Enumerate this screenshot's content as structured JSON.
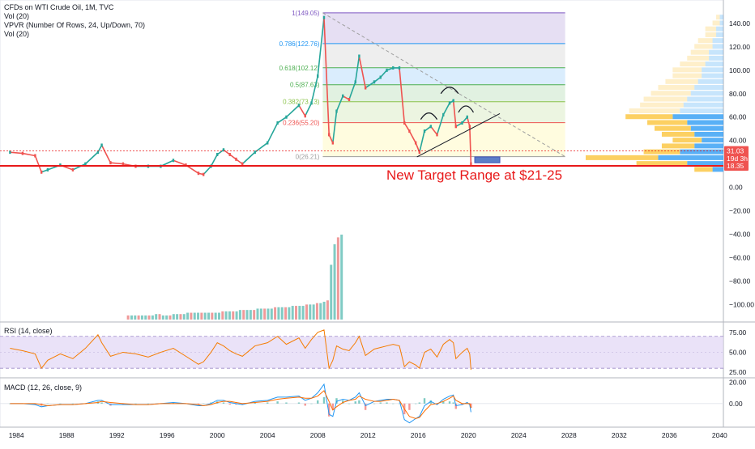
{
  "legend": {
    "symbol": "CFDs on WTI Crude Oil, 1M, TVC",
    "vol1": "Vol (20)",
    "vpvr": "VPVR (Number Of Rows, 24, Up/Down, 70)",
    "vol2": "Vol (20)"
  },
  "annotation": {
    "target_text": "New Target Range at $21-25"
  },
  "colors": {
    "up": "#26a69a",
    "down": "#ef5350",
    "target_line": "#e8191a",
    "rsi": "#f57c00",
    "macd": "#2196f3",
    "signal": "#ff6d00",
    "fib_line": "#9e9e9e"
  },
  "fib_levels": [
    {
      "label": "1(149.05)",
      "price": 149.05,
      "color": "#7e57c2",
      "fill": "#d1c4e9"
    },
    {
      "label": "0.786(122.76)",
      "price": 122.76,
      "color": "#2196f3",
      "fill": "#e0e0e0"
    },
    {
      "label": "0.618(102.12)",
      "price": 102.12,
      "color": "#4caf50",
      "fill": "#bbdefb"
    },
    {
      "label": "0.5(87.63)",
      "price": 87.63,
      "color": "#4caf50",
      "fill": "#c8e6c9"
    },
    {
      "label": "0.382(73.13)",
      "price": 73.13,
      "color": "#8bc34a",
      "fill": "#dcedc8"
    },
    {
      "label": "0.236(55.20)",
      "price": 55.2,
      "color": "#ef5350",
      "fill": "#fff9c4"
    },
    {
      "label": "0(26.21)",
      "price": 26.21,
      "color": "#9e9e9e",
      "fill": "#ffcdd2"
    }
  ],
  "price_badges": [
    {
      "text": "31.03",
      "price": 31.03,
      "color": "#ef5350"
    },
    {
      "text": "19d 3h",
      "price": 24.6,
      "color": "#ef5350"
    },
    {
      "text": "18.35",
      "price": 18.35,
      "color": "#ef5350"
    }
  ],
  "price_axis": {
    "ticks": [
      "140.00",
      "120.00",
      "100.00",
      "80.00",
      "60.00",
      "40.00",
      "20.00",
      "0.00",
      "−20.00",
      "−40.00",
      "−60.00",
      "−80.00",
      "−100.00"
    ],
    "values": [
      140,
      120,
      100,
      80,
      60,
      40,
      20,
      0,
      -20,
      -40,
      -60,
      -80,
      -100
    ]
  },
  "rsi": {
    "label": "RSI (14, close)",
    "ticks": [
      "75.00",
      "50.00",
      "25.00"
    ],
    "values": [
      75,
      50,
      25
    ]
  },
  "macd": {
    "label": "MACD (12, 26, close, 9)",
    "ticks": [
      "20.00",
      "0.00"
    ],
    "values": [
      20,
      0
    ]
  },
  "time_axis": {
    "labels": [
      "1984",
      "1988",
      "1992",
      "1996",
      "2000",
      "2004",
      "2008",
      "2012",
      "2016",
      "2020",
      "2024",
      "2028",
      "2032",
      "2036",
      "2040"
    ],
    "years": [
      1984,
      1988,
      1992,
      1996,
      2000,
      2004,
      2008,
      2012,
      2016,
      2020,
      2024,
      2028,
      2032,
      2036,
      2040
    ]
  },
  "chart_data": {
    "type": "line",
    "series": [
      {
        "name": "CFDs on WTI Crude Oil, 1M, TVC",
        "x": [
          1983.5,
          1984.5,
          1985.5,
          1986.0,
          1986.5,
          1987.5,
          1988.5,
          1989.5,
          1990.5,
          1990.8,
          1991.5,
          1992.5,
          1993.5,
          1994.5,
          1995.5,
          1996.5,
          1997.5,
          1998.5,
          1998.9,
          1999.5,
          2000.0,
          2000.5,
          2001.0,
          2001.5,
          2002.0,
          2003.0,
          2004.0,
          2004.8,
          2005.5,
          2006.5,
          2007.0,
          2007.5,
          2008.0,
          2008.5,
          2008.9,
          2009.2,
          2009.5,
          2010.0,
          2010.5,
          2011.0,
          2011.3,
          2011.8,
          2012.5,
          2013.0,
          2013.5,
          2014.0,
          2014.5,
          2014.9,
          2015.3,
          2015.8,
          2016.1,
          2016.5,
          2017.0,
          2017.5,
          2018.0,
          2018.5,
          2018.8,
          2019.0,
          2019.5,
          2019.9,
          2020.1,
          2020.2
        ],
        "y": [
          30,
          29,
          27,
          13,
          15,
          19,
          15,
          20,
          30,
          36,
          21,
          20,
          18,
          18,
          18,
          23,
          19,
          12,
          11,
          18,
          28,
          32,
          28,
          24,
          20,
          30,
          38,
          55,
          60,
          70,
          61,
          72,
          95,
          145,
          45,
          38,
          65,
          78,
          75,
          90,
          112,
          85,
          90,
          94,
          100,
          102,
          102,
          55,
          48,
          38,
          30,
          48,
          52,
          45,
          62,
          72,
          74,
          52,
          55,
          60,
          52,
          20
        ]
      }
    ],
    "ylim": [
      -115,
      160
    ],
    "xlim": [
      1982.7,
      2040.3
    ],
    "volume_profile": {
      "prices": [
        145,
        140,
        135,
        130,
        125,
        120,
        115,
        110,
        105,
        100,
        95,
        90,
        85,
        80,
        75,
        70,
        65,
        60,
        55,
        50,
        45,
        40,
        35,
        30,
        25,
        20,
        15
      ],
      "up": [
        1,
        2,
        3,
        3,
        4,
        5,
        5,
        6,
        7,
        8,
        8,
        9,
        10,
        11,
        12,
        12,
        14,
        13,
        11,
        10,
        9,
        8,
        9,
        10,
        20,
        14,
        5
      ],
      "down": [
        1,
        1,
        2,
        2,
        3,
        3,
        4,
        4,
        5,
        6,
        6,
        7,
        8,
        9,
        10,
        11,
        12,
        14,
        10,
        9,
        8,
        6,
        8,
        12,
        18,
        10,
        3
      ]
    },
    "rsi_values": [
      55,
      52,
      48,
      30,
      40,
      48,
      42,
      55,
      72,
      62,
      45,
      50,
      48,
      44,
      50,
      55,
      45,
      35,
      38,
      50,
      62,
      58,
      52,
      48,
      45,
      58,
      62,
      70,
      60,
      68,
      55,
      66,
      75,
      78,
      30,
      40,
      58,
      54,
      52,
      62,
      70,
      46,
      54,
      56,
      58,
      60,
      58,
      32,
      38,
      34,
      30,
      50,
      54,
      44,
      60,
      66,
      62,
      42,
      50,
      55,
      48,
      28
    ],
    "macd_values": [
      0,
      0,
      -1,
      -3,
      -2,
      -1,
      -1,
      0,
      3,
      3,
      -1,
      -1,
      -1,
      -1,
      0,
      1,
      0,
      -2,
      -2,
      0,
      3,
      3,
      1,
      0,
      -1,
      2,
      3,
      6,
      6,
      7,
      3,
      5,
      10,
      18,
      -10,
      -12,
      2,
      4,
      3,
      6,
      10,
      -2,
      2,
      3,
      4,
      4,
      3,
      -15,
      -18,
      -14,
      -12,
      -2,
      2,
      -1,
      4,
      7,
      8,
      -2,
      -1,
      1,
      -1,
      -8
    ],
    "signal_values": [
      0,
      0,
      0,
      -1,
      -2,
      -1,
      -1,
      0,
      1,
      2,
      1,
      0,
      -1,
      -1,
      0,
      0,
      0,
      -1,
      -2,
      -1,
      1,
      2,
      2,
      1,
      0,
      1,
      2,
      4,
      5,
      6,
      5,
      5,
      7,
      12,
      2,
      -6,
      -3,
      1,
      3,
      4,
      7,
      4,
      2,
      2,
      3,
      4,
      3,
      -5,
      -12,
      -14,
      -13,
      -7,
      -1,
      0,
      2,
      5,
      7,
      3,
      0,
      0,
      0,
      -4
    ],
    "volume_values": [
      3,
      3,
      3,
      3,
      3,
      3,
      3,
      3,
      4,
      4,
      3,
      3,
      3,
      4,
      4,
      4,
      4,
      5,
      5,
      5,
      5,
      5,
      5,
      5,
      5,
      5,
      5,
      6,
      6,
      6,
      6,
      6,
      7,
      7,
      7,
      7,
      7,
      8,
      8,
      8,
      8,
      8,
      9,
      9,
      9,
      9,
      9,
      10,
      10,
      10,
      10,
      11,
      11,
      11,
      12,
      12,
      13,
      14,
      40,
      55,
      60,
      62
    ]
  }
}
